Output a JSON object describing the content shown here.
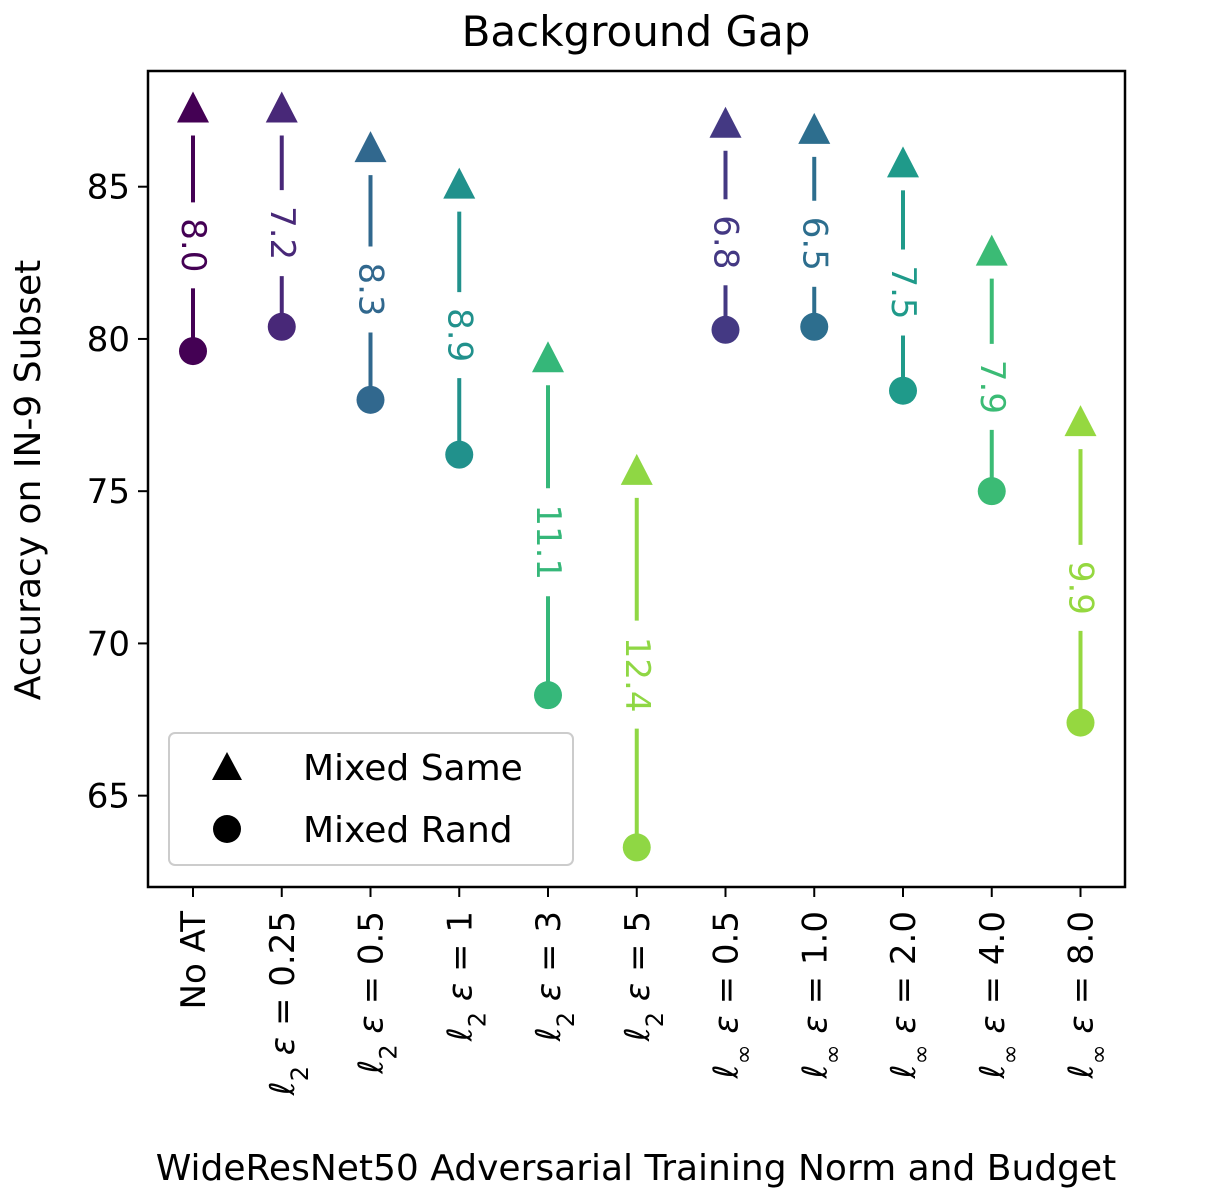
{
  "chart_data": {
    "type": "arrow-dot",
    "title": "Background Gap",
    "xlabel": "WideResNet50 Adversarial Training Norm and Budget",
    "ylabel": "Accuracy on IN-9 Subset",
    "ylim": [
      62,
      88.8
    ],
    "yticks": [
      65,
      70,
      75,
      80,
      85
    ],
    "categories": [
      {
        "label": "No AT",
        "norm": "",
        "eps": ""
      },
      {
        "label": "ℓ2 ε = 0.25",
        "norm": "2",
        "eps": "0.25"
      },
      {
        "label": "ℓ2 ε = 0.5",
        "norm": "2",
        "eps": "0.5"
      },
      {
        "label": "ℓ2 ε = 1",
        "norm": "2",
        "eps": "1"
      },
      {
        "label": "ℓ2 ε = 3",
        "norm": "2",
        "eps": "3"
      },
      {
        "label": "ℓ2 ε = 5",
        "norm": "2",
        "eps": "5"
      },
      {
        "label": "ℓ∞ ε = 0.5",
        "norm": "∞",
        "eps": "0.5"
      },
      {
        "label": "ℓ∞ ε = 1.0",
        "norm": "∞",
        "eps": "1.0"
      },
      {
        "label": "ℓ∞ ε = 2.0",
        "norm": "∞",
        "eps": "2.0"
      },
      {
        "label": "ℓ∞ ε = 4.0",
        "norm": "∞",
        "eps": "4.0"
      },
      {
        "label": "ℓ∞ ε = 8.0",
        "norm": "∞",
        "eps": "8.0"
      }
    ],
    "series": [
      {
        "name": "Mixed Rand",
        "marker": "circle",
        "values": [
          79.6,
          80.4,
          78.0,
          76.2,
          68.3,
          63.3,
          80.3,
          80.4,
          78.3,
          75.0,
          67.4
        ]
      },
      {
        "name": "Mixed Same",
        "marker": "triangle",
        "values": [
          87.6,
          87.6,
          86.3,
          85.1,
          79.4,
          75.7,
          87.1,
          86.9,
          85.8,
          82.9,
          77.3
        ]
      }
    ],
    "gap_labels": [
      "8.0",
      "7.2",
      "8.3",
      "8.9",
      "11.1",
      "12.4",
      "6.8",
      "6.5",
      "7.5",
      "7.9",
      "9.9"
    ],
    "colors": [
      "#440154",
      "#482878",
      "#31688e",
      "#21918c",
      "#35b779",
      "#8fd744",
      "#443983",
      "#2d6e8e",
      "#1f9a8a",
      "#3bbb75",
      "#95d840"
    ],
    "legend": {
      "position": "lower-left",
      "entries": [
        "Mixed Same",
        "Mixed Rand"
      ]
    }
  }
}
